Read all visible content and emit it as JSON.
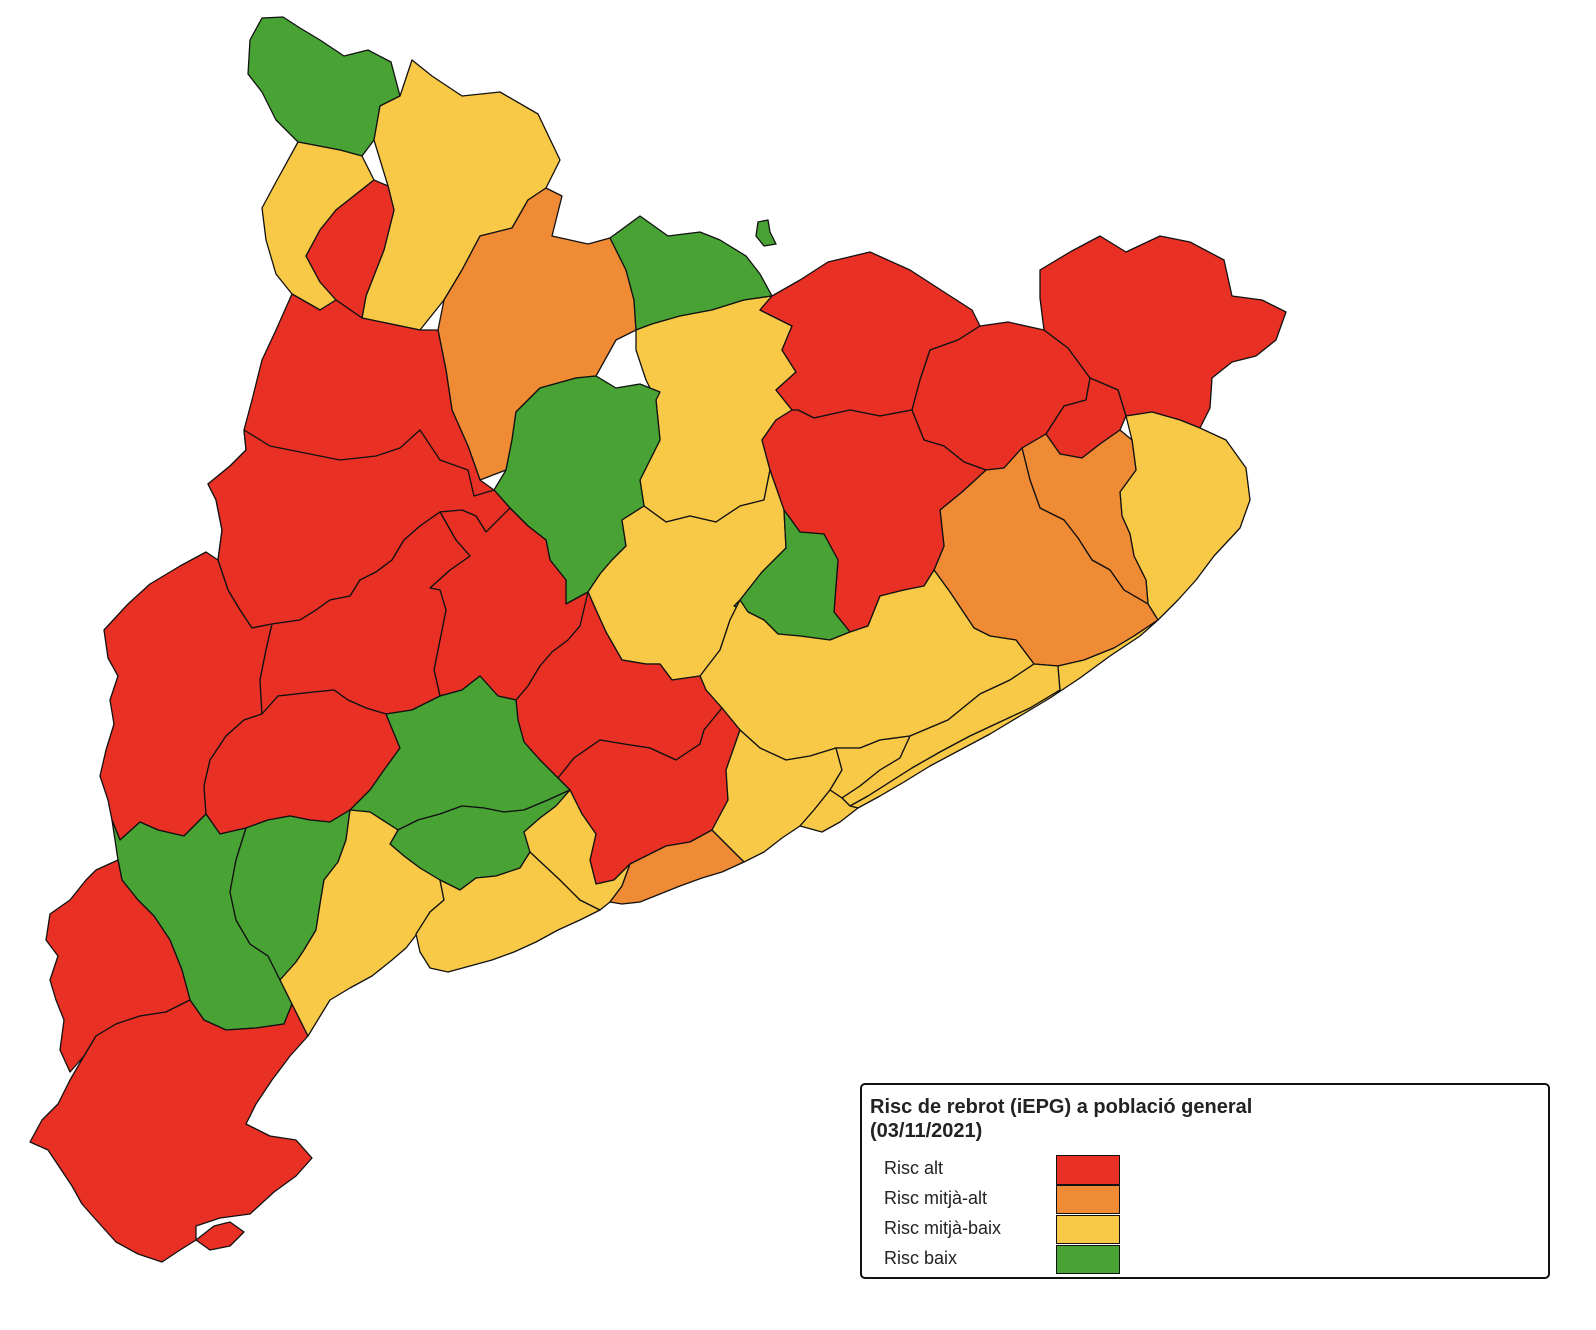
{
  "legend": {
    "title_line1": "Risc de rebrot (iEPG) a població general",
    "title_line2": "(03/11/2021)",
    "items": [
      {
        "key": "alt",
        "label": "Risc alt",
        "color": "#e83025"
      },
      {
        "key": "mitja_alt",
        "label": "Risc mitjà-alt",
        "color": "#ef8a35"
      },
      {
        "key": "mitja_baix",
        "label": "Risc mitjà-baix",
        "color": "#f7c947"
      },
      {
        "key": "baix",
        "label": "Risc baix",
        "color": "#48a334"
      }
    ]
  },
  "map": {
    "regions": [
      {
        "name": "region-nw-aran",
        "risk": "baix"
      },
      {
        "name": "region-pallars-sobira",
        "risk": "mitja_baix"
      },
      {
        "name": "region-alta-ribagorca-west",
        "risk": "mitja_baix"
      },
      {
        "name": "region-alta-ribagorca-east",
        "risk": "alt"
      },
      {
        "name": "region-alt-urgell",
        "risk": "mitja_alt"
      },
      {
        "name": "region-cerdanya",
        "risk": "baix"
      },
      {
        "name": "region-ripolles",
        "risk": "mitja_baix"
      },
      {
        "name": "region-garrotxa-west",
        "risk": "alt"
      },
      {
        "name": "region-alt-emporda-west",
        "risk": "alt"
      },
      {
        "name": "region-alt-emporda-east",
        "risk": "alt"
      },
      {
        "name": "region-pla-estany",
        "risk": "alt"
      },
      {
        "name": "region-baix-emporda",
        "risk": "mitja_baix"
      },
      {
        "name": "region-girones",
        "risk": "mitja_alt"
      },
      {
        "name": "region-selva",
        "risk": "mitja_alt"
      },
      {
        "name": "region-osona",
        "risk": "alt"
      },
      {
        "name": "region-bergueda",
        "risk": "baix"
      },
      {
        "name": "region-solsones",
        "risk": "mitja_baix"
      },
      {
        "name": "region-bages",
        "risk": "mitja_baix"
      },
      {
        "name": "region-moianes",
        "risk": "baix"
      },
      {
        "name": "region-pallars-jussa",
        "risk": "alt"
      },
      {
        "name": "region-noguera",
        "risk": "alt"
      },
      {
        "name": "region-segarra-urgell",
        "risk": "alt"
      },
      {
        "name": "region-segria",
        "risk": "alt"
      },
      {
        "name": "region-pla-urgell",
        "risk": "alt"
      },
      {
        "name": "region-garrigues",
        "risk": "alt"
      },
      {
        "name": "region-anoia",
        "risk": "alt"
      },
      {
        "name": "region-alt-penedes",
        "risk": "alt"
      },
      {
        "name": "region-conca-barbera",
        "risk": "baix"
      },
      {
        "name": "region-alt-camp",
        "risk": "baix"
      },
      {
        "name": "region-ribera-ebre",
        "risk": "baix"
      },
      {
        "name": "region-priorat",
        "risk": "baix"
      },
      {
        "name": "region-terra-alta",
        "risk": "alt"
      },
      {
        "name": "region-baix-ebre-montsia",
        "risk": "alt"
      },
      {
        "name": "region-baix-camp",
        "risk": "mitja_baix"
      },
      {
        "name": "region-tarragones",
        "risk": "mitja_baix"
      },
      {
        "name": "region-baix-penedes",
        "risk": "mitja_baix"
      },
      {
        "name": "region-garraf",
        "risk": "mitja_alt"
      },
      {
        "name": "region-baix-llobregat",
        "risk": "mitja_baix"
      },
      {
        "name": "region-valles-occidental",
        "risk": "mitja_baix"
      },
      {
        "name": "region-valles-oriental",
        "risk": "mitja_baix"
      },
      {
        "name": "region-maresme",
        "risk": "mitja_baix"
      },
      {
        "name": "region-barcelones",
        "risk": "mitja_baix"
      }
    ]
  }
}
